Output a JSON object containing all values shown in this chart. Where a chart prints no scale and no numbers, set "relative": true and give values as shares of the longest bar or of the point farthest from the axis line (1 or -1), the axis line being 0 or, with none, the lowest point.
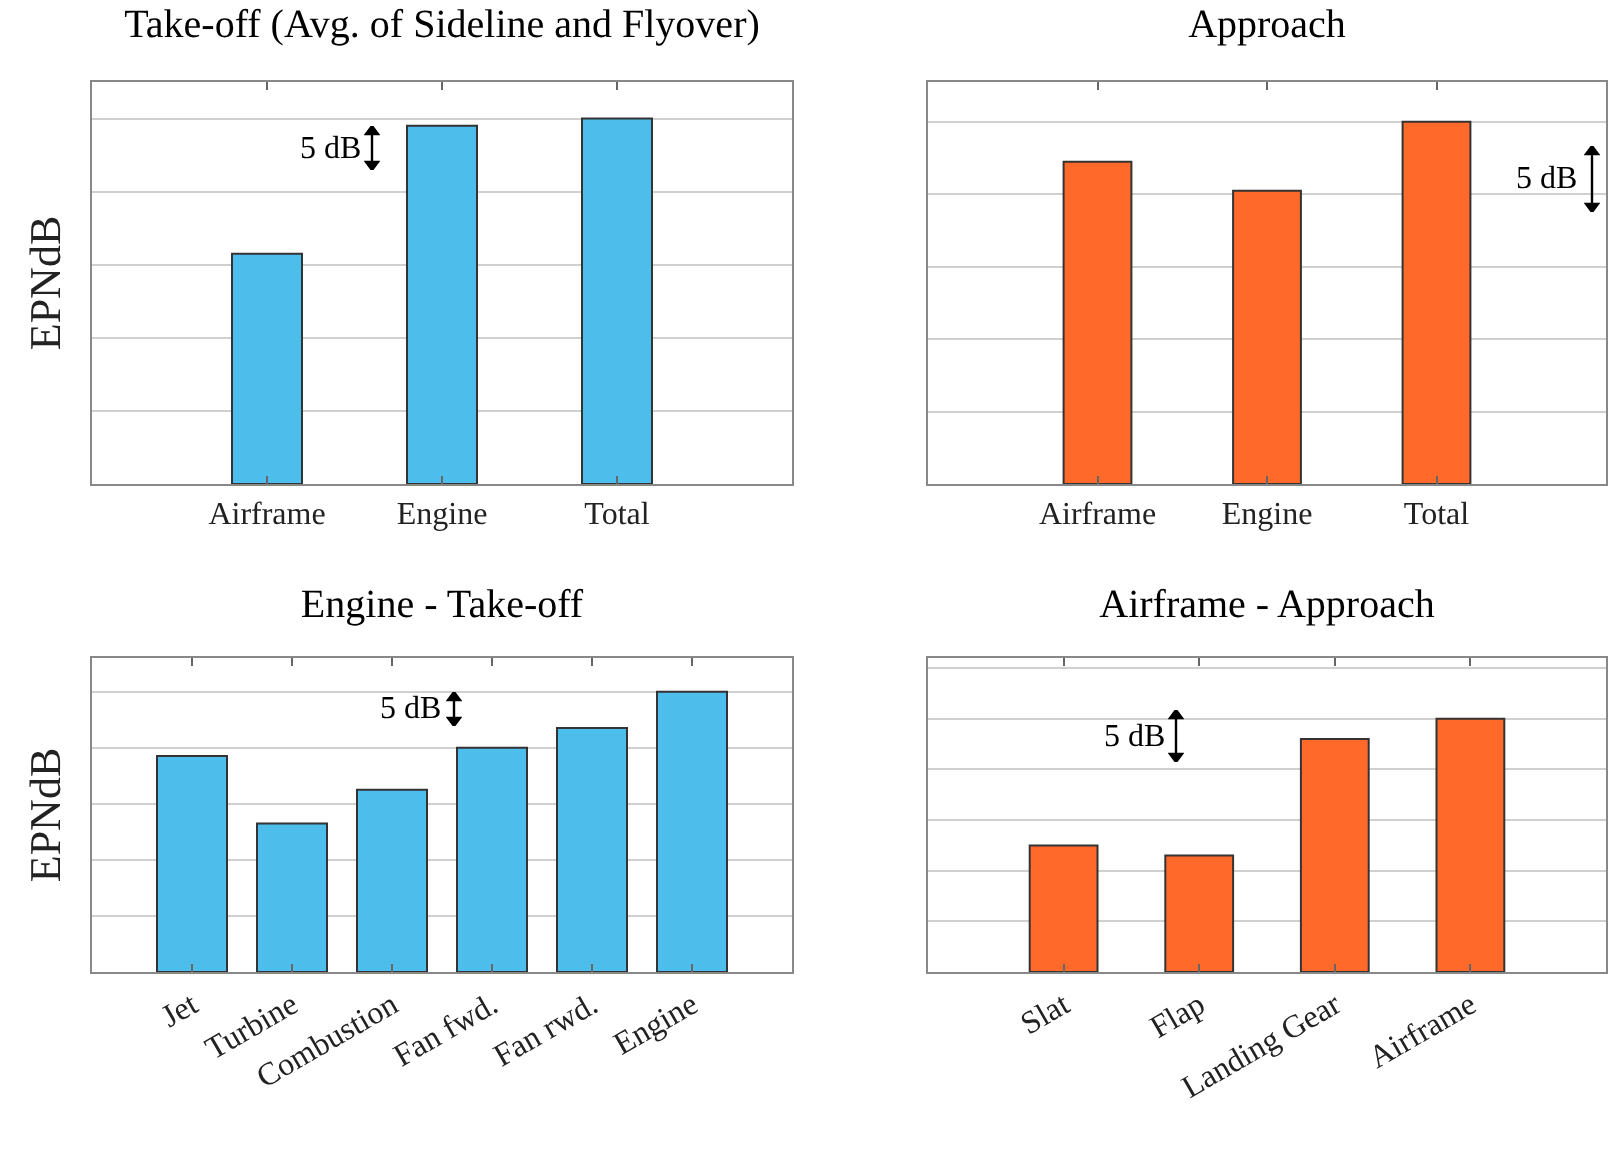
{
  "chart_data": [
    {
      "type": "bar",
      "title": "Take-off (Avg. of Sideline and Flyover)",
      "ylabel": "EPNdB",
      "categories": [
        "Airframe",
        "Engine",
        "Total"
      ],
      "values": [
        0.63,
        0.98,
        1
      ],
      "color": "#4dbeeb",
      "relative": true,
      "grid": "y",
      "legend": false,
      "annotations": [
        "5 dB"
      ]
    },
    {
      "type": "bar",
      "title": "Approach",
      "categories": [
        "Airframe",
        "Engine",
        "Total"
      ],
      "values": [
        0.89,
        0.81,
        1
      ],
      "color": "#ff6a2b",
      "relative": true,
      "grid": "y",
      "legend": false,
      "annotations": [
        "5 dB"
      ]
    },
    {
      "type": "bar",
      "title": "Engine - Take-off",
      "ylabel": "EPNdB",
      "categories": [
        "Jet",
        "Turbine",
        "Combustion",
        "Fan fwd.",
        "Fan rwd.",
        "Engine"
      ],
      "values": [
        0.77,
        0.53,
        0.65,
        0.8,
        0.87,
        1
      ],
      "color": "#4dbeeb",
      "relative": true,
      "grid": "y",
      "legend": false,
      "annotations": [
        "5 dB"
      ]
    },
    {
      "type": "bar",
      "title": "Airframe - Approach",
      "categories": [
        "Slat",
        "Flap",
        "Landing Gear",
        "Airframe"
      ],
      "values": [
        0.5,
        0.46,
        0.92,
        1
      ],
      "color": "#ff6a2b",
      "relative": true,
      "grid": "y",
      "legend": false,
      "annotations": [
        "5 dB"
      ]
    }
  ]
}
